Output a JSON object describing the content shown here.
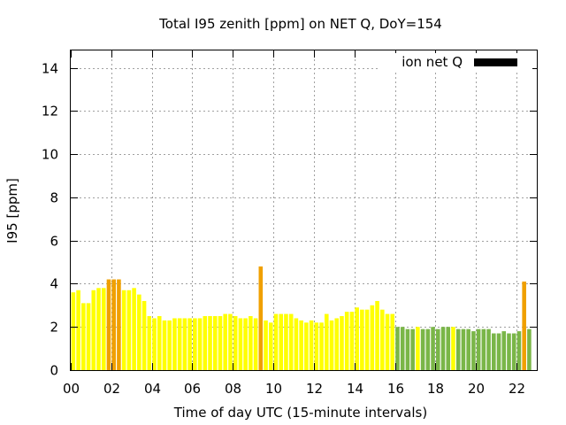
{
  "chart_data": {
    "type": "bar",
    "title": "Total I95 zenith [ppm] on NET Q, DoY=154",
    "xlabel": "Time of day UTC (15-minute intervals)",
    "ylabel": "I95 [ppm]",
    "xlim": [
      0,
      23
    ],
    "ylim": [
      0,
      14.8
    ],
    "x_ticks": [
      "00",
      "02",
      "04",
      "06",
      "08",
      "10",
      "12",
      "14",
      "16",
      "18",
      "20",
      "22"
    ],
    "y_ticks": [
      "0",
      "2",
      "4",
      "6",
      "8",
      "10",
      "12",
      "14"
    ],
    "grid": true,
    "legend": {
      "position": "top-right",
      "label": "ion net Q",
      "color": "#000000"
    },
    "colors": {
      "yellow": "#ffff00",
      "orange": "#f0a000",
      "green": "#7ab648"
    },
    "bar_width_hours": 0.2,
    "series": [
      {
        "x": [
          0.125,
          0.375,
          0.625,
          0.875,
          1.125,
          1.375,
          1.625,
          1.875,
          2.125,
          2.375,
          2.625,
          2.875,
          3.125,
          3.375,
          3.625,
          3.875,
          4.125,
          4.375,
          4.625,
          4.875,
          5.125,
          5.375,
          5.625,
          5.875,
          6.125,
          6.375,
          6.625,
          6.875,
          7.125,
          7.375,
          7.625,
          7.875,
          8.125,
          8.375,
          8.625,
          8.875,
          9.125,
          9.375,
          9.625,
          9.875,
          10.125,
          10.375,
          10.625,
          10.875,
          11.125,
          11.375,
          11.625,
          11.875,
          12.125,
          12.375,
          12.625,
          12.875,
          13.125,
          13.375,
          13.625,
          13.875,
          14.125,
          14.375,
          14.625,
          14.875,
          15.125,
          15.375,
          15.625,
          15.875,
          16.125,
          16.375,
          16.625,
          16.875,
          17.125,
          17.375,
          17.625,
          17.875,
          18.125,
          18.375,
          18.625,
          18.875,
          19.125,
          19.375,
          19.625,
          19.875,
          20.125,
          20.375,
          20.625,
          20.875,
          21.125,
          21.375,
          21.625,
          21.875,
          22.125,
          22.375,
          22.625
        ],
        "values": [
          3.6,
          3.7,
          3.1,
          3.1,
          3.7,
          3.8,
          3.8,
          4.2,
          4.2,
          4.2,
          3.7,
          3.7,
          3.8,
          3.5,
          3.2,
          2.5,
          2.4,
          2.5,
          2.3,
          2.3,
          2.4,
          2.4,
          2.4,
          2.4,
          2.4,
          2.4,
          2.5,
          2.5,
          2.5,
          2.5,
          2.6,
          2.6,
          2.5,
          2.4,
          2.4,
          2.5,
          2.4,
          4.8,
          2.3,
          2.2,
          2.6,
          2.6,
          2.6,
          2.6,
          2.4,
          2.3,
          2.2,
          2.3,
          2.2,
          2.2,
          2.6,
          2.3,
          2.4,
          2.5,
          2.7,
          2.7,
          2.9,
          2.8,
          2.8,
          3.0,
          3.2,
          2.8,
          2.6,
          2.6,
          2.0,
          2.0,
          1.9,
          1.9,
          2.0,
          1.9,
          1.9,
          2.0,
          1.9,
          2.0,
          2.0,
          2.0,
          1.9,
          1.9,
          1.9,
          1.8,
          1.9,
          1.9,
          1.9,
          1.7,
          1.7,
          1.8,
          1.7,
          1.7,
          1.8,
          4.1,
          1.9
        ],
        "status": [
          "y",
          "y",
          "y",
          "y",
          "y",
          "y",
          "y",
          "o",
          "o",
          "o",
          "y",
          "y",
          "y",
          "y",
          "y",
          "y",
          "y",
          "y",
          "y",
          "y",
          "y",
          "y",
          "y",
          "y",
          "y",
          "y",
          "y",
          "y",
          "y",
          "y",
          "y",
          "y",
          "y",
          "y",
          "y",
          "y",
          "y",
          "o",
          "y",
          "y",
          "y",
          "y",
          "y",
          "y",
          "y",
          "y",
          "y",
          "y",
          "y",
          "y",
          "y",
          "y",
          "y",
          "y",
          "y",
          "y",
          "y",
          "y",
          "y",
          "y",
          "y",
          "y",
          "y",
          "y",
          "g",
          "g",
          "g",
          "g",
          "y",
          "g",
          "g",
          "g",
          "g",
          "g",
          "g",
          "y",
          "g",
          "g",
          "g",
          "g",
          "g",
          "g",
          "g",
          "g",
          "g",
          "g",
          "g",
          "g",
          "g",
          "o",
          "g"
        ]
      }
    ]
  }
}
